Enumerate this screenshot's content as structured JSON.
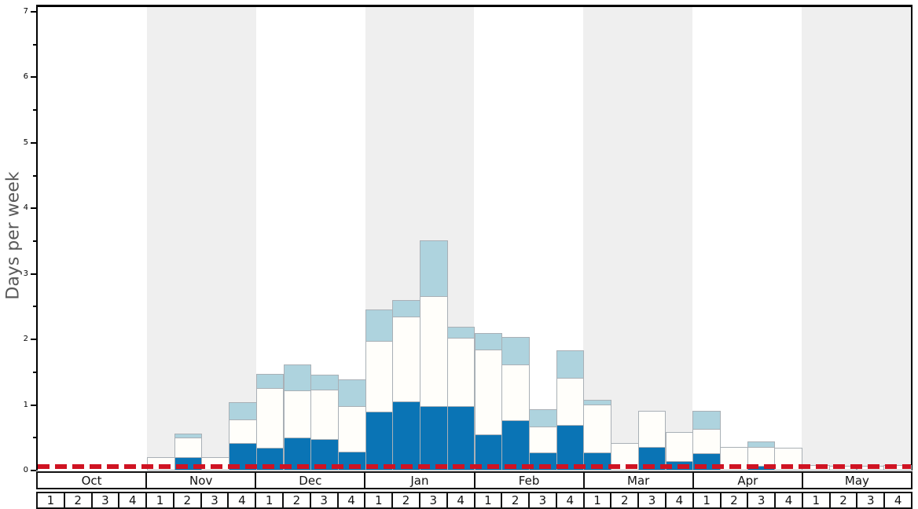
{
  "chart_data": {
    "type": "bar",
    "stacked": true,
    "title": "",
    "xlabel": "",
    "ylabel": "Days per week",
    "ylim": [
      0,
      7
    ],
    "yticks": [
      0,
      1,
      2,
      3,
      4,
      5,
      6,
      7
    ],
    "ytick_minor_interval": 0.5,
    "grid": false,
    "legend": "none",
    "months": [
      "Oct",
      "Nov",
      "Dec",
      "Jan",
      "Feb",
      "Mar",
      "Apr",
      "May"
    ],
    "week_labels": [
      "1",
      "2",
      "3",
      "4"
    ],
    "weeks_per_month": 4,
    "shaded_months": [
      "Nov",
      "Jan",
      "Mar",
      "May"
    ],
    "band_color": "#efefef",
    "bar_edge_color": "#a9b0b6",
    "series": [
      {
        "name": "dark-blue-segment",
        "color": "#0a74b5",
        "values": [
          0,
          0,
          0,
          0,
          0,
          0.21,
          0,
          0.42,
          0.35,
          0.5,
          0.48,
          0.29,
          0.9,
          1.05,
          0.98,
          0.98,
          0.55,
          0.77,
          0.28,
          0.69,
          0.28,
          0,
          0.36,
          0.14,
          0.27,
          0,
          0.07,
          0,
          0,
          0,
          0,
          0
        ]
      },
      {
        "name": "white-segment",
        "color": "#fffefa",
        "values": [
          0,
          0,
          0,
          0,
          0.21,
          0.29,
          0.21,
          0.36,
          0.91,
          0.72,
          0.75,
          0.69,
          1.08,
          1.3,
          1.68,
          1.05,
          1.29,
          0.85,
          0.39,
          0.72,
          0.73,
          0.42,
          0.55,
          0.45,
          0.37,
          0.36,
          0.29,
          0.35,
          0.08,
          0.07,
          0.07,
          0.09
        ]
      },
      {
        "name": "light-blue-segment",
        "color": "#aed3de",
        "values": [
          0,
          0,
          0,
          0,
          0,
          0.07,
          0,
          0.26,
          0.22,
          0.4,
          0.23,
          0.41,
          0.48,
          0.25,
          0.85,
          0.16,
          0.26,
          0.42,
          0.26,
          0.42,
          0.07,
          0,
          0,
          0,
          0.27,
          0,
          0.08,
          0,
          0,
          0,
          0,
          0
        ]
      }
    ],
    "reference_line": {
      "value": 0.05,
      "color": "#cf1322",
      "style": "dashed"
    }
  }
}
